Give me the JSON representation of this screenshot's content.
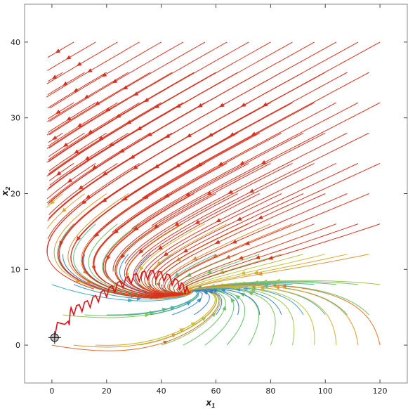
{
  "chart_data": {
    "type": "stream",
    "title": "",
    "xlabel": "x1",
    "ylabel": "x2",
    "xlabel_main": "x",
    "xlabel_sub": "1",
    "ylabel_main": "x",
    "ylabel_sub": "2",
    "xlim": [
      -10,
      130
    ],
    "ylim": [
      -5,
      45
    ],
    "xticks": [
      0,
      20,
      40,
      60,
      80,
      100,
      120
    ],
    "yticks": [
      0,
      10,
      20,
      30,
      40
    ],
    "grid": false,
    "legend": "none",
    "equilibrium_node": [
      50,
      7
    ],
    "field": {
      "a": 0.025,
      "b": 0.2,
      "c": 0.12,
      "d": 0.03,
      "e": 0.004
    },
    "trajectory": {
      "color": "#e3101a",
      "start": [
        1,
        1
      ],
      "end": [
        50,
        7
      ],
      "points": [
        [
          1,
          1
        ],
        [
          2,
          3
        ],
        [
          6,
          2.6
        ],
        [
          7,
          4.4
        ],
        [
          10,
          4.8
        ],
        [
          13,
          5.3
        ],
        [
          16,
          6.0
        ],
        [
          19,
          6.7
        ],
        [
          22,
          7.3
        ],
        [
          25,
          7.9
        ],
        [
          28,
          8.5
        ],
        [
          31,
          8.9
        ],
        [
          34,
          9.2
        ],
        [
          37,
          9.3
        ],
        [
          40,
          9.1
        ],
        [
          43,
          8.7
        ],
        [
          46,
          8.0
        ],
        [
          48,
          7.5
        ],
        [
          50,
          7
        ]
      ]
    },
    "marker": {
      "x": 1,
      "y": 1,
      "symbol": "circle-crosshair"
    },
    "colors": {
      "palette": [
        "#3a2d9e",
        "#3e6fc9",
        "#3ea9c6",
        "#63c46a",
        "#c9c43a",
        "#e98a2e",
        "#d8321f"
      ],
      "axes": "#222222",
      "frame": "#8a8a8a"
    }
  }
}
